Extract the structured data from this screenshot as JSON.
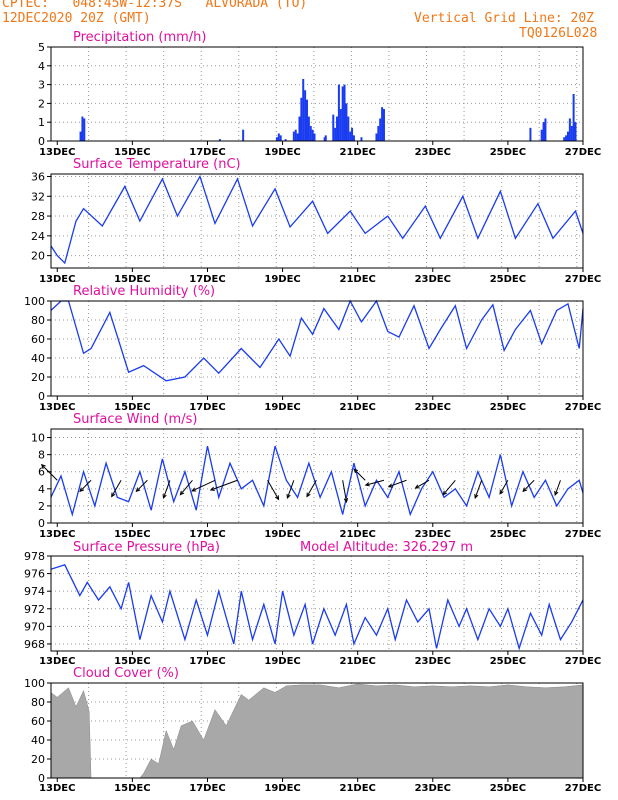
{
  "header": {
    "line1_left": "CPTEC:   048:45W-12:37S   ALVORADA (TO)",
    "line2_left": "12DEC2020 20Z (GMT)",
    "line1_right": "Vertical Grid Line: 20Z",
    "line2_right": "TQ0126L028"
  },
  "colors": {
    "header": "#f07818",
    "title": "#e0109e",
    "series": "#1a3cf0",
    "cloud": "#a8a8a8"
  },
  "x_axis": {
    "tick_labels": [
      "13DEC",
      "15DEC",
      "17DEC",
      "19DEC",
      "21DEC",
      "23DEC",
      "25DEC",
      "27DEC"
    ],
    "range_days": [
      12.8333,
      27.0
    ],
    "vertical_grid_days": [
      12.8333,
      13.8333,
      14.8333,
      15.8333,
      16.8333,
      17.8333,
      18.8333,
      19.8333,
      20.8333,
      21.8333,
      22.8333,
      23.8333,
      24.8333,
      25.8333,
      26.8333
    ]
  },
  "chart_data": [
    {
      "type": "bar",
      "title": "Precipitation (mm/h)",
      "ylim": [
        0,
        5
      ],
      "yticks": [
        0,
        1,
        2,
        3,
        4,
        5
      ],
      "x": [
        13.62,
        13.67,
        13.72,
        17.33,
        17.95,
        18.85,
        18.9,
        18.95,
        19.08,
        19.3,
        19.35,
        19.4,
        19.45,
        19.5,
        19.55,
        19.6,
        19.65,
        19.7,
        19.75,
        19.8,
        19.85,
        20.12,
        20.15,
        20.35,
        20.4,
        20.45,
        20.5,
        20.55,
        20.6,
        20.65,
        20.7,
        20.75,
        20.8,
        20.85,
        20.9,
        21.1,
        21.5,
        21.55,
        21.6,
        21.65,
        21.7,
        25.6,
        25.9,
        25.95,
        26.0,
        26.5,
        26.55,
        26.6,
        26.65,
        26.7,
        26.75,
        26.8
      ],
      "values": [
        0.5,
        1.3,
        1.2,
        0.1,
        0.6,
        0.2,
        0.4,
        0.3,
        0.1,
        0.5,
        0.6,
        0.4,
        1.3,
        2.3,
        3.3,
        2.7,
        2.2,
        1.3,
        0.8,
        0.6,
        0.4,
        0.2,
        0.3,
        1.4,
        0.7,
        1.3,
        3.0,
        1.7,
        2.9,
        3.0,
        2.0,
        1.3,
        0.5,
        0.7,
        0.3,
        0.2,
        0.4,
        0.8,
        1.2,
        1.8,
        1.7,
        0.7,
        0.6,
        1.0,
        1.2,
        0.2,
        0.3,
        0.5,
        1.2,
        0.8,
        2.5,
        1.0
      ]
    },
    {
      "type": "line",
      "title": "Surface Temperature (nC)",
      "ylim": [
        17.5,
        36.5
      ],
      "yticks": [
        20,
        24,
        28,
        32,
        36
      ],
      "x": [
        12.83,
        13.0,
        13.2,
        13.5,
        13.7,
        14.2,
        14.8,
        15.2,
        15.8,
        16.2,
        16.8,
        17.2,
        17.8,
        18.2,
        18.8,
        19.2,
        19.8,
        20.2,
        20.8,
        21.2,
        21.8,
        22.2,
        22.8,
        23.2,
        23.8,
        24.2,
        24.8,
        25.2,
        25.8,
        26.2,
        26.8,
        27.0
      ],
      "values": [
        22,
        20,
        18.5,
        27,
        29.5,
        26,
        34,
        27,
        35.5,
        28,
        36,
        26.5,
        35.5,
        26,
        33.5,
        25.8,
        31,
        24.5,
        29,
        24.5,
        28,
        23.5,
        30,
        23.5,
        32,
        23.5,
        33,
        23.5,
        30.5,
        23.5,
        29,
        24.5
      ]
    },
    {
      "type": "line",
      "title": "Relative Humidity (%)",
      "ylim": [
        0,
        100
      ],
      "yticks": [
        0,
        20,
        40,
        60,
        80,
        100
      ],
      "x": [
        12.83,
        13.1,
        13.3,
        13.7,
        13.9,
        14.4,
        14.9,
        15.3,
        15.9,
        16.4,
        16.9,
        17.3,
        17.9,
        18.4,
        18.9,
        19.2,
        19.5,
        19.8,
        20.1,
        20.5,
        20.8,
        21.1,
        21.5,
        21.8,
        22.1,
        22.5,
        22.9,
        23.2,
        23.6,
        23.9,
        24.3,
        24.6,
        24.9,
        25.2,
        25.6,
        25.9,
        26.3,
        26.6,
        26.9,
        27.0
      ],
      "values": [
        90,
        100,
        100,
        45,
        50,
        88,
        25,
        32,
        16,
        20,
        40,
        24,
        50,
        30,
        60,
        42,
        82,
        65,
        92,
        70,
        100,
        78,
        100,
        68,
        62,
        95,
        50,
        70,
        95,
        50,
        80,
        96,
        48,
        70,
        90,
        55,
        90,
        97,
        50,
        92
      ]
    },
    {
      "type": "line",
      "title": "Surface Wind (m/s)",
      "ylim": [
        0,
        11
      ],
      "yticks": [
        0,
        2,
        4,
        6,
        8,
        10
      ],
      "x": [
        12.83,
        13.1,
        13.4,
        13.7,
        14.0,
        14.3,
        14.6,
        14.9,
        15.2,
        15.5,
        15.8,
        16.1,
        16.4,
        16.7,
        17.0,
        17.3,
        17.6,
        17.9,
        18.2,
        18.5,
        18.8,
        19.1,
        19.4,
        19.7,
        20.0,
        20.3,
        20.6,
        20.9,
        21.2,
        21.5,
        21.8,
        22.1,
        22.4,
        22.7,
        23.0,
        23.3,
        23.6,
        23.9,
        24.2,
        24.5,
        24.8,
        25.1,
        25.4,
        25.7,
        26.0,
        26.3,
        26.6,
        26.9,
        27.0
      ],
      "values": [
        3,
        5.5,
        1,
        6,
        2,
        7,
        3,
        2.5,
        6,
        1.5,
        7.5,
        2.5,
        6,
        1.5,
        9,
        3,
        7,
        4,
        5,
        2,
        9,
        5,
        3,
        7,
        3,
        6,
        1,
        7,
        2,
        5,
        3,
        6,
        1,
        4,
        6,
        3,
        4,
        2,
        6,
        3,
        8,
        2,
        6,
        3,
        5,
        2,
        4,
        5,
        3.5
      ],
      "arrows": [
        {
          "x": 13.0,
          "dir_deg": 315,
          "speed": 5
        },
        {
          "x": 13.9,
          "dir_deg": 225,
          "speed": 3
        },
        {
          "x": 14.7,
          "dir_deg": 210,
          "speed": 4
        },
        {
          "x": 15.4,
          "dir_deg": 225,
          "speed": 3
        },
        {
          "x": 16.0,
          "dir_deg": 200,
          "speed": 4
        },
        {
          "x": 16.6,
          "dir_deg": 220,
          "speed": 4
        },
        {
          "x": 17.2,
          "dir_deg": 245,
          "speed": 6
        },
        {
          "x": 17.8,
          "dir_deg": 250,
          "speed": 7
        },
        {
          "x": 18.6,
          "dir_deg": 150,
          "speed": 5
        },
        {
          "x": 19.3,
          "dir_deg": 200,
          "speed": 4
        },
        {
          "x": 19.9,
          "dir_deg": 210,
          "speed": 4
        },
        {
          "x": 20.6,
          "dir_deg": 170,
          "speed": 5
        },
        {
          "x": 21.2,
          "dir_deg": 315,
          "speed": 3
        },
        {
          "x": 21.7,
          "dir_deg": 255,
          "speed": 4
        },
        {
          "x": 22.3,
          "dir_deg": 250,
          "speed": 4
        },
        {
          "x": 22.9,
          "dir_deg": 240,
          "speed": 3
        },
        {
          "x": 23.6,
          "dir_deg": 220,
          "speed": 4
        },
        {
          "x": 24.3,
          "dir_deg": 200,
          "speed": 4
        },
        {
          "x": 25.0,
          "dir_deg": 210,
          "speed": 3
        },
        {
          "x": 25.7,
          "dir_deg": 225,
          "speed": 3
        },
        {
          "x": 26.4,
          "dir_deg": 200,
          "speed": 3
        }
      ]
    },
    {
      "type": "line",
      "title": "Surface Pressure (hPa)",
      "subtitle": "Model Altitude: 326.297 m",
      "ylim": [
        967.2,
        978
      ],
      "yticks": [
        968,
        970,
        972,
        974,
        976,
        978
      ],
      "x": [
        12.83,
        13.2,
        13.6,
        13.8,
        14.1,
        14.4,
        14.7,
        14.9,
        15.2,
        15.5,
        15.8,
        16.0,
        16.4,
        16.7,
        17.0,
        17.3,
        17.7,
        17.9,
        18.2,
        18.5,
        18.8,
        19.0,
        19.3,
        19.6,
        19.8,
        20.1,
        20.4,
        20.7,
        20.9,
        21.2,
        21.5,
        21.8,
        22.0,
        22.3,
        22.6,
        22.9,
        23.1,
        23.4,
        23.7,
        23.9,
        24.2,
        24.5,
        24.8,
        25.0,
        25.3,
        25.6,
        25.9,
        26.1,
        26.4,
        26.7,
        27.0
      ],
      "values": [
        976.5,
        977,
        973.5,
        975,
        973,
        974.5,
        972,
        975,
        968.5,
        973.5,
        970.5,
        974,
        968.5,
        973,
        969,
        974,
        968,
        974,
        968.5,
        972.5,
        968,
        974,
        969,
        972.5,
        968,
        972,
        969,
        972.5,
        968,
        971,
        969,
        972,
        968.5,
        973,
        970.5,
        972,
        967.5,
        973,
        970,
        972,
        968.5,
        972,
        970,
        972,
        967.5,
        971.5,
        969,
        972.5,
        968.5,
        970.5,
        973
      ]
    },
    {
      "type": "area",
      "title": "Cloud Cover (%)",
      "ylim": [
        0,
        100
      ],
      "yticks": [
        0,
        20,
        40,
        60,
        80,
        100
      ],
      "x": [
        12.83,
        13.0,
        13.3,
        13.5,
        13.7,
        13.85,
        13.9,
        14.2,
        14.7,
        15.2,
        15.3,
        15.5,
        15.7,
        15.9,
        16.1,
        16.3,
        16.6,
        16.9,
        17.2,
        17.5,
        17.9,
        18.1,
        18.5,
        18.8,
        19.1,
        19.5,
        20.0,
        20.5,
        21.0,
        21.5,
        22.0,
        22.5,
        23.0,
        23.5,
        24.0,
        24.5,
        25.0,
        25.5,
        26.0,
        26.5,
        27.0
      ],
      "values": [
        90,
        85,
        95,
        75,
        92,
        70,
        0,
        0,
        0,
        0,
        5,
        20,
        15,
        50,
        30,
        55,
        60,
        40,
        72,
        55,
        88,
        82,
        95,
        90,
        97,
        98,
        98,
        95,
        99,
        97,
        98,
        96,
        97,
        96,
        97,
        96,
        98,
        96,
        95,
        96,
        98
      ]
    }
  ]
}
